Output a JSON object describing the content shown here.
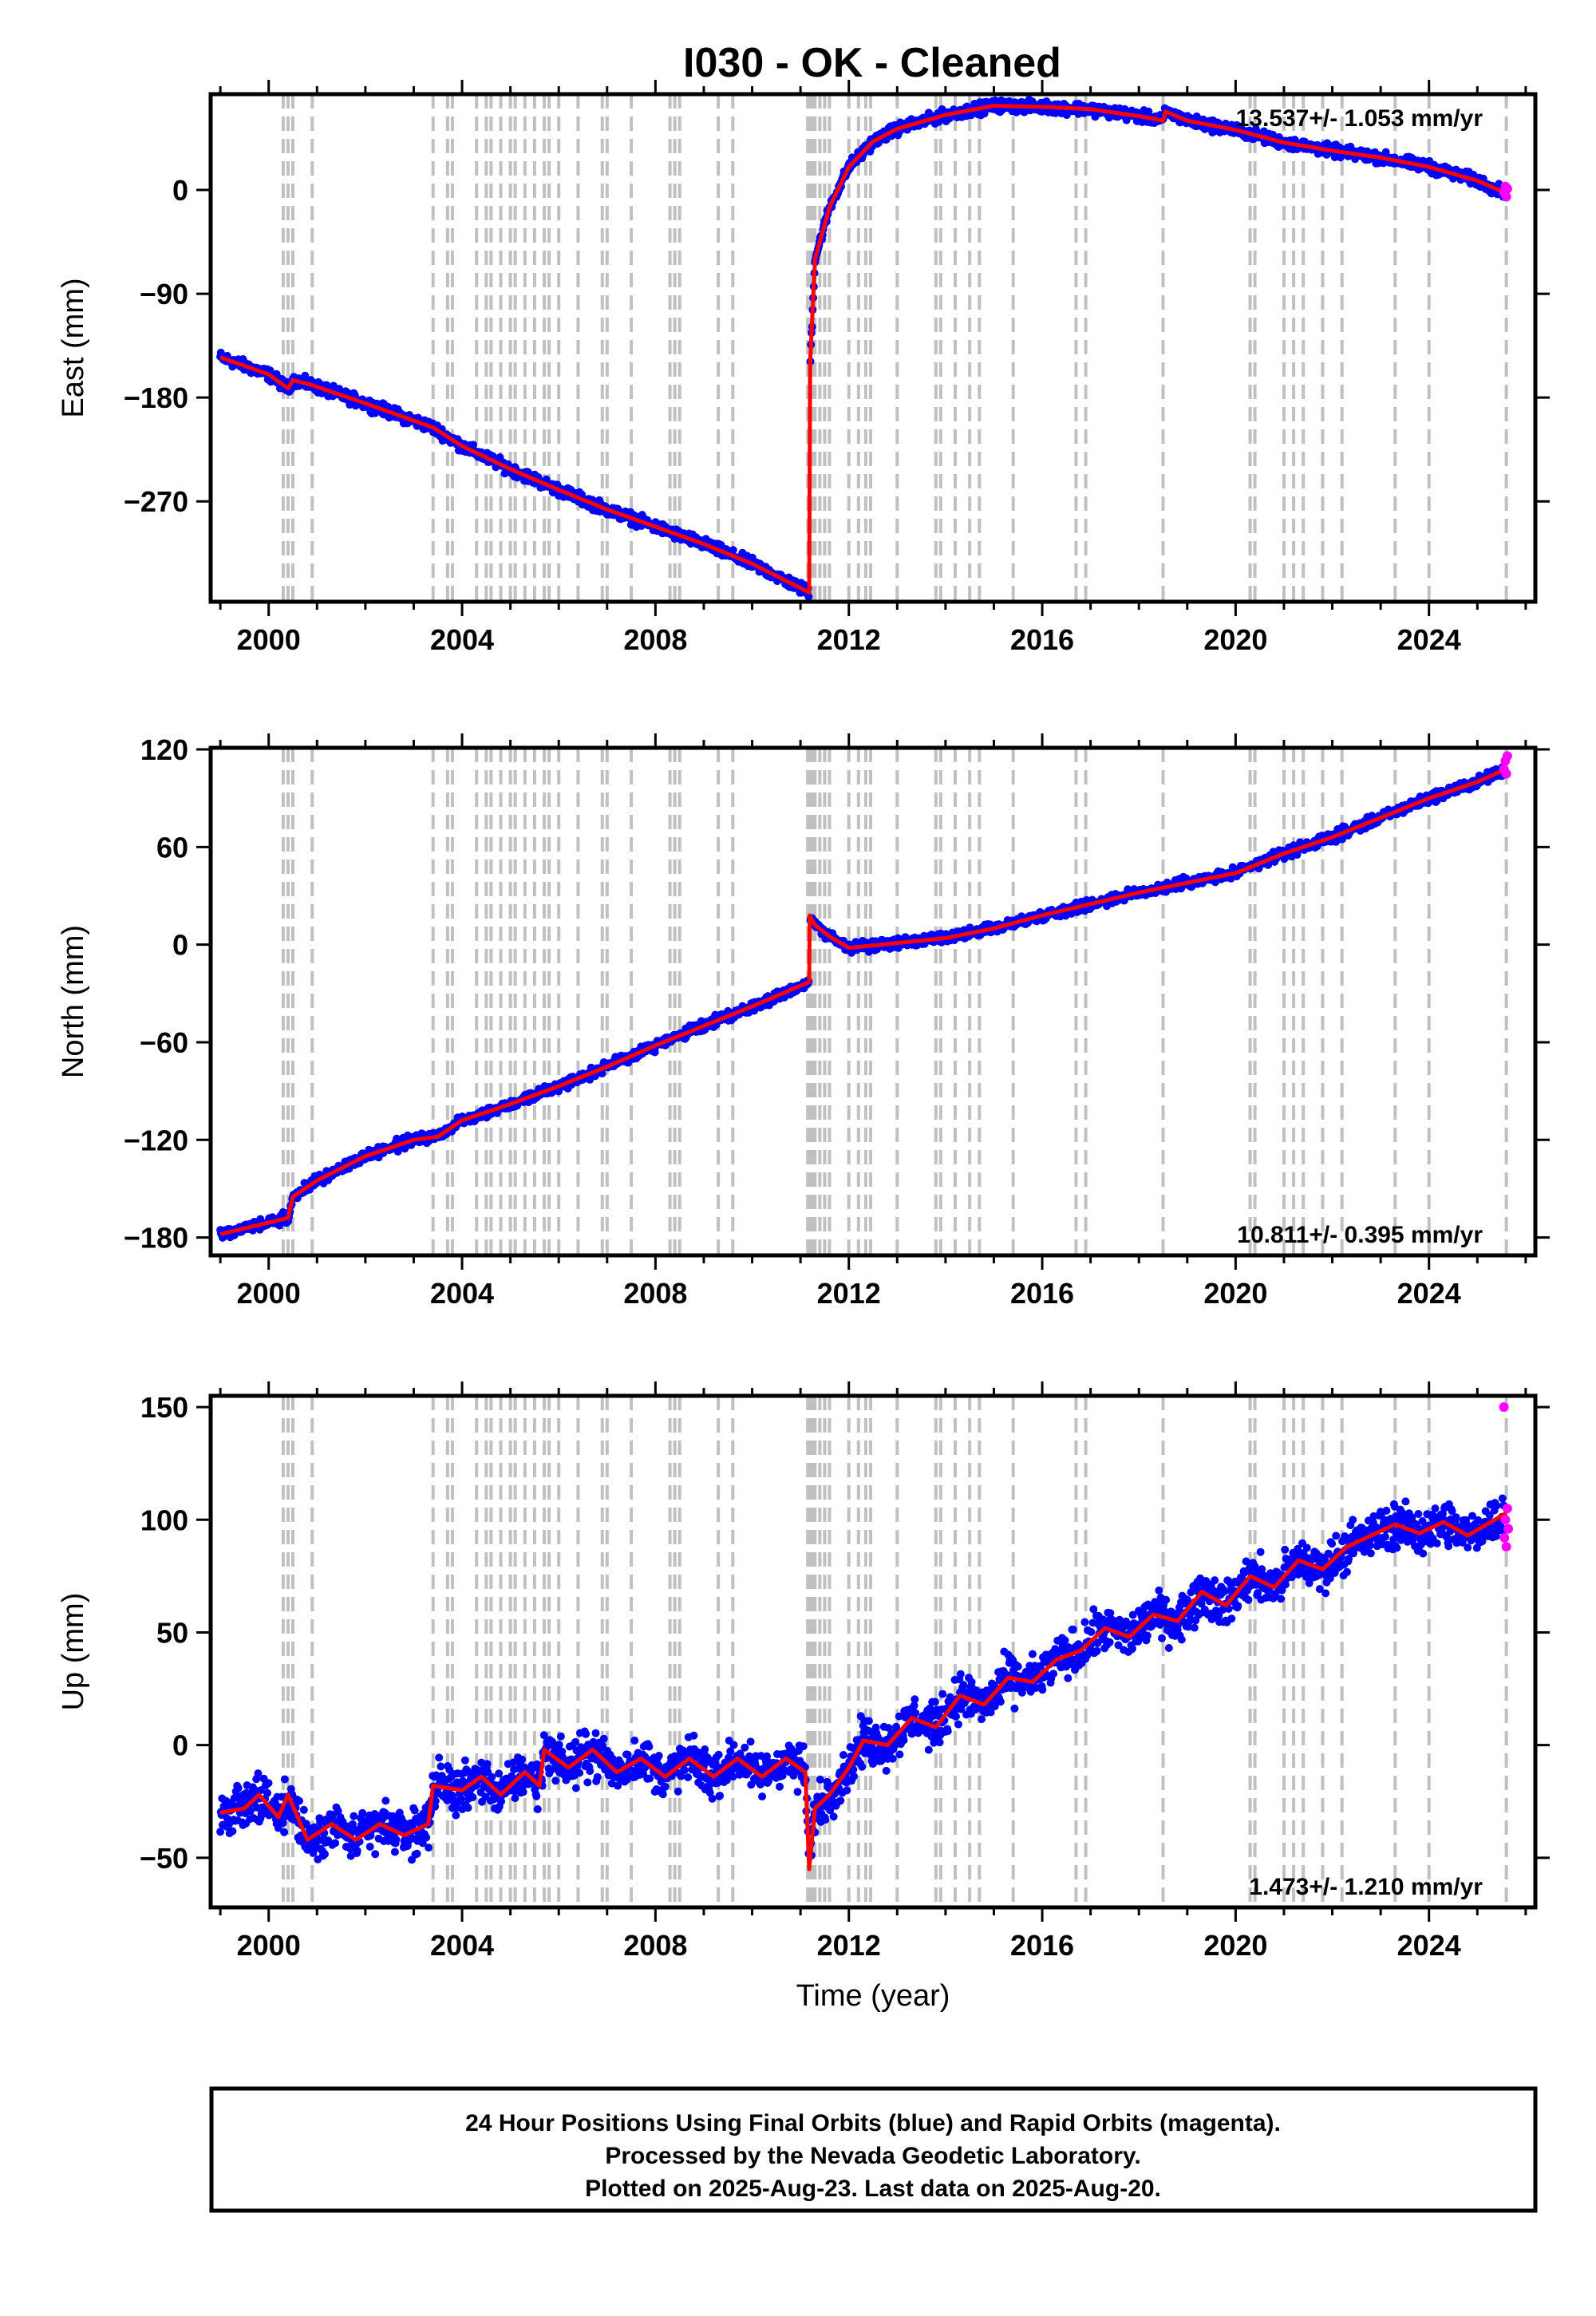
{
  "title": "I030  - OK - Cleaned",
  "footer": {
    "line1": "24 Hour Positions Using Final Orbits (blue) and Rapid Orbits (magenta).",
    "line2": "Processed by the Nevada Geodetic Laboratory.",
    "line3": "Plotted on 2025-Aug-23. Last data on 2025-Aug-20."
  },
  "colors": {
    "final": "#0000ff",
    "rapid": "#ff00ff",
    "model": "#ff0000",
    "steps": "#c0c0c0"
  },
  "chart_data": [
    {
      "type": "scatter",
      "id": "east",
      "ylabel": "East (mm)",
      "xlabel": "",
      "xlim": [
        1998.8,
        2026.2
      ],
      "ylim": [
        -357,
        83
      ],
      "yticks": [
        -270,
        -180,
        -90,
        0
      ],
      "xticks": [
        2000,
        2004,
        2008,
        2012,
        2016,
        2020,
        2024
      ],
      "rate": "13.537+/- 1.053 mm/yr",
      "model": [
        [
          1999.0,
          -145
        ],
        [
          2000.0,
          -160
        ],
        [
          2000.4,
          -172
        ],
        [
          2000.5,
          -165
        ],
        [
          2000.8,
          -168
        ],
        [
          2002.0,
          -185
        ],
        [
          2003.4,
          -206
        ],
        [
          2004.0,
          -222
        ],
        [
          2005.0,
          -242
        ],
        [
          2006.0,
          -260
        ],
        [
          2007.0,
          -277
        ],
        [
          2008.0,
          -292
        ],
        [
          2009.0,
          -307
        ],
        [
          2010.0,
          -324
        ],
        [
          2011.18,
          -349
        ],
        [
          2011.19,
          -250
        ],
        [
          2011.2,
          -150
        ],
        [
          2011.3,
          -60
        ],
        [
          2011.6,
          -15
        ],
        [
          2012.0,
          20
        ],
        [
          2012.5,
          42
        ],
        [
          2013.0,
          53
        ],
        [
          2014.0,
          65
        ],
        [
          2015.0,
          73
        ],
        [
          2016.0,
          72
        ],
        [
          2017.0,
          70
        ],
        [
          2018.0,
          64
        ],
        [
          2018.5,
          60
        ],
        [
          2018.55,
          68
        ],
        [
          2019.0,
          60
        ],
        [
          2020.0,
          52
        ],
        [
          2021.0,
          41
        ],
        [
          2022.0,
          34
        ],
        [
          2023.0,
          28
        ],
        [
          2024.0,
          20
        ],
        [
          2025.0,
          8
        ],
        [
          2025.6,
          -3
        ]
      ],
      "noise": 4,
      "rapid": [
        [
          2025.55,
          -2
        ],
        [
          2025.58,
          3
        ],
        [
          2025.6,
          -6
        ],
        [
          2025.62,
          1
        ]
      ],
      "steps": [
        2000.3,
        2000.4,
        2000.5,
        2000.9,
        2003.4,
        2003.7,
        2003.8,
        2004.3,
        2004.5,
        2004.6,
        2004.8,
        2005.0,
        2005.1,
        2005.3,
        2005.5,
        2005.7,
        2005.8,
        2006.0,
        2006.4,
        2006.9,
        2007.0,
        2007.5,
        2008.3,
        2008.4,
        2008.5,
        2009.3,
        2009.6,
        2011.15,
        2011.2,
        2011.25,
        2011.3,
        2011.4,
        2011.5,
        2011.6,
        2012.0,
        2012.2,
        2012.35,
        2012.45,
        2013.0,
        2013.8,
        2013.9,
        2014.2,
        2014.5,
        2014.7,
        2015.4,
        2016.7,
        2016.9,
        2018.5,
        2020.3,
        2020.4,
        2021.0,
        2021.2,
        2021.4,
        2021.8,
        2022.2,
        2023.3,
        2024.0,
        2025.6
      ]
    },
    {
      "type": "scatter",
      "id": "north",
      "ylabel": "North (mm)",
      "xlabel": "",
      "xlim": [
        1998.8,
        2026.2
      ],
      "ylim": [
        -191,
        121
      ],
      "yticks": [
        -180,
        -120,
        -60,
        0,
        60,
        120
      ],
      "xticks": [
        2000,
        2004,
        2008,
        2012,
        2016,
        2020,
        2024
      ],
      "rate": "10.811+/- 0.395 mm/yr",
      "model": [
        [
          1999.0,
          -178
        ],
        [
          2000.4,
          -168
        ],
        [
          2000.5,
          -155
        ],
        [
          2001.0,
          -145
        ],
        [
          2002.0,
          -130
        ],
        [
          2003.0,
          -120
        ],
        [
          2003.5,
          -118
        ],
        [
          2004.0,
          -108
        ],
        [
          2005.0,
          -98
        ],
        [
          2006.0,
          -87
        ],
        [
          2007.0,
          -75
        ],
        [
          2008.0,
          -62
        ],
        [
          2009.0,
          -50
        ],
        [
          2010.0,
          -38
        ],
        [
          2011.18,
          -23
        ],
        [
          2011.19,
          18
        ],
        [
          2011.3,
          12
        ],
        [
          2011.6,
          5
        ],
        [
          2012.0,
          -2
        ],
        [
          2013.0,
          1
        ],
        [
          2014.0,
          4
        ],
        [
          2015.0,
          10
        ],
        [
          2016.0,
          18
        ],
        [
          2017.0,
          25
        ],
        [
          2018.0,
          32
        ],
        [
          2019.0,
          38
        ],
        [
          2020.0,
          44
        ],
        [
          2021.0,
          56
        ],
        [
          2022.0,
          66
        ],
        [
          2023.0,
          78
        ],
        [
          2024.0,
          90
        ],
        [
          2025.0,
          100
        ],
        [
          2025.6,
          108
        ]
      ],
      "noise": 2.5,
      "rapid": [
        [
          2025.55,
          108
        ],
        [
          2025.58,
          113
        ],
        [
          2025.6,
          105
        ],
        [
          2025.62,
          116
        ]
      ],
      "steps": [
        2000.3,
        2000.4,
        2000.5,
        2000.9,
        2003.4,
        2003.7,
        2003.8,
        2004.3,
        2004.5,
        2004.6,
        2004.8,
        2005.0,
        2005.1,
        2005.3,
        2005.5,
        2005.7,
        2005.8,
        2006.0,
        2006.4,
        2006.9,
        2007.0,
        2007.5,
        2008.3,
        2008.4,
        2008.5,
        2009.3,
        2009.6,
        2011.15,
        2011.2,
        2011.25,
        2011.3,
        2011.4,
        2011.5,
        2011.6,
        2012.0,
        2012.2,
        2012.35,
        2012.45,
        2013.0,
        2013.8,
        2013.9,
        2014.2,
        2014.5,
        2014.7,
        2015.4,
        2016.7,
        2016.9,
        2018.5,
        2020.3,
        2020.4,
        2021.0,
        2021.2,
        2021.4,
        2021.8,
        2022.2,
        2023.3,
        2024.0,
        2025.6
      ]
    },
    {
      "type": "scatter",
      "id": "up",
      "ylabel": "Up (mm)",
      "xlabel": "Time (year)",
      "xlim": [
        1998.8,
        2026.2
      ],
      "ylim": [
        -72,
        155
      ],
      "yticks": [
        -50,
        0,
        50,
        100,
        150
      ],
      "xticks": [
        2000,
        2004,
        2008,
        2012,
        2016,
        2020,
        2024
      ],
      "rate": "1.473+/- 1.210 mm/yr",
      "model": [
        [
          1999.0,
          -30
        ],
        [
          1999.5,
          -28
        ],
        [
          1999.8,
          -22
        ],
        [
          2000.2,
          -32
        ],
        [
          2000.4,
          -22
        ],
        [
          2000.8,
          -42
        ],
        [
          2001.3,
          -35
        ],
        [
          2001.8,
          -42
        ],
        [
          2002.3,
          -35
        ],
        [
          2002.8,
          -40
        ],
        [
          2003.3,
          -35
        ],
        [
          2003.4,
          -18
        ],
        [
          2004.0,
          -20
        ],
        [
          2004.4,
          -14
        ],
        [
          2004.8,
          -22
        ],
        [
          2005.3,
          -12
        ],
        [
          2005.6,
          -18
        ],
        [
          2005.7,
          -2
        ],
        [
          2006.2,
          -10
        ],
        [
          2006.7,
          -2
        ],
        [
          2007.2,
          -12
        ],
        [
          2007.7,
          -6
        ],
        [
          2008.2,
          -14
        ],
        [
          2008.7,
          -6
        ],
        [
          2009.2,
          -14
        ],
        [
          2009.7,
          -6
        ],
        [
          2010.2,
          -14
        ],
        [
          2010.7,
          -6
        ],
        [
          2011.1,
          -12
        ],
        [
          2011.18,
          -55
        ],
        [
          2011.3,
          -28
        ],
        [
          2011.6,
          -22
        ],
        [
          2012.0,
          -10
        ],
        [
          2012.3,
          2
        ],
        [
          2012.8,
          0
        ],
        [
          2013.3,
          12
        ],
        [
          2013.8,
          8
        ],
        [
          2014.3,
          22
        ],
        [
          2014.8,
          18
        ],
        [
          2015.3,
          30
        ],
        [
          2015.8,
          28
        ],
        [
          2016.3,
          38
        ],
        [
          2016.8,
          42
        ],
        [
          2017.3,
          52
        ],
        [
          2017.8,
          48
        ],
        [
          2018.3,
          58
        ],
        [
          2018.8,
          55
        ],
        [
          2019.3,
          68
        ],
        [
          2019.8,
          62
        ],
        [
          2020.3,
          75
        ],
        [
          2020.8,
          70
        ],
        [
          2021.3,
          82
        ],
        [
          2021.8,
          78
        ],
        [
          2022.3,
          88
        ],
        [
          2022.8,
          93
        ],
        [
          2023.3,
          98
        ],
        [
          2023.8,
          94
        ],
        [
          2024.3,
          99
        ],
        [
          2024.8,
          93
        ],
        [
          2025.6,
          103
        ]
      ],
      "noise": 8,
      "rapid": [
        [
          2025.55,
          150
        ],
        [
          2025.56,
          92
        ],
        [
          2025.58,
          100
        ],
        [
          2025.6,
          88
        ],
        [
          2025.62,
          105
        ],
        [
          2025.64,
          96
        ]
      ],
      "steps": [
        2000.3,
        2000.4,
        2000.5,
        2000.9,
        2003.4,
        2003.7,
        2003.8,
        2004.3,
        2004.5,
        2004.6,
        2004.8,
        2005.0,
        2005.1,
        2005.3,
        2005.5,
        2005.7,
        2005.8,
        2006.0,
        2006.4,
        2006.9,
        2007.0,
        2007.5,
        2008.3,
        2008.4,
        2008.5,
        2009.3,
        2009.6,
        2011.15,
        2011.2,
        2011.25,
        2011.3,
        2011.4,
        2011.5,
        2011.6,
        2012.0,
        2012.2,
        2012.35,
        2012.45,
        2013.0,
        2013.8,
        2013.9,
        2014.2,
        2014.5,
        2014.7,
        2015.4,
        2016.7,
        2016.9,
        2018.5,
        2020.3,
        2020.4,
        2021.0,
        2021.2,
        2021.4,
        2021.8,
        2022.2,
        2023.3,
        2024.0,
        2025.6
      ]
    }
  ]
}
